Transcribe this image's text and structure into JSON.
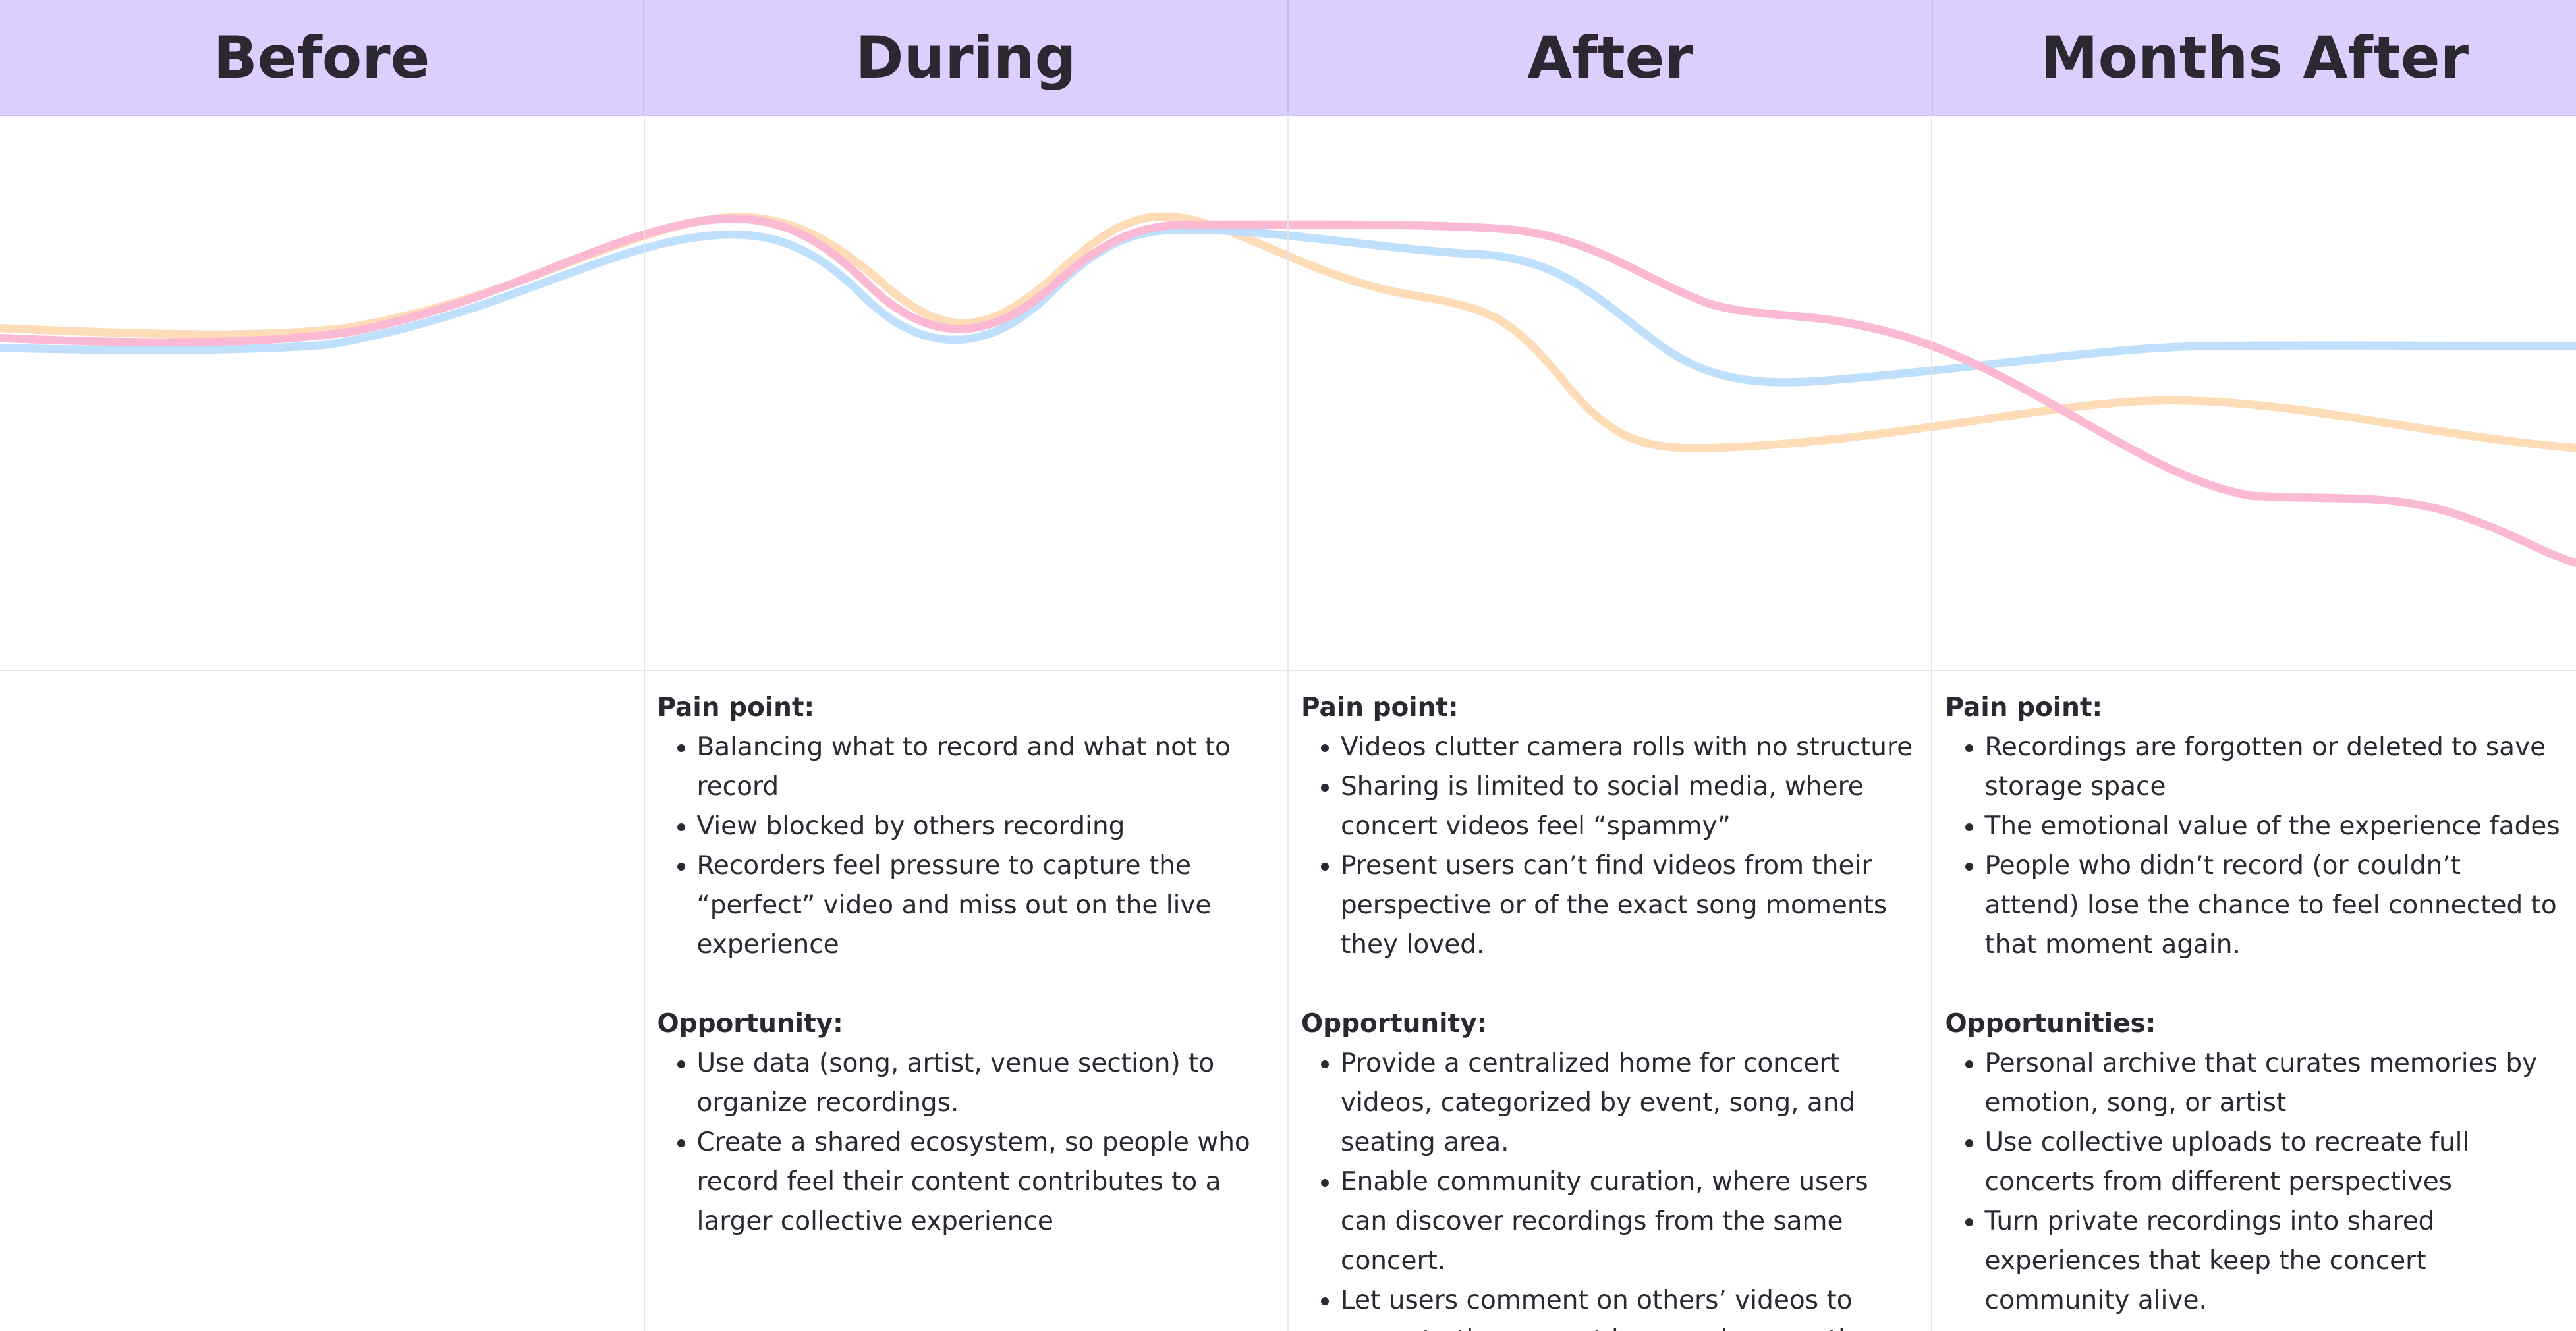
{
  "columns": [
    {
      "title": "Before"
    },
    {
      "title": "During",
      "sections": [
        {
          "heading": "Pain point:",
          "items": [
            "Balancing what to record and what not to record",
            "View blocked by others recording",
            "Recorders feel pressure to capture the “perfect” video and miss out on the live experience"
          ]
        },
        {
          "heading": "Opportunity:",
          "items": [
            "Use data (song, artist, venue section) to organize recordings.",
            "Create a shared ecosystem, so people who record feel their content contributes to a larger collective experience"
          ]
        }
      ]
    },
    {
      "title": "After",
      "sections": [
        {
          "heading": "Pain point:",
          "items": [
            "Videos clutter camera rolls with no structure",
            "Sharing is limited to social media, where concert videos feel “spammy”",
            "Present users can’t find videos from their perspective or of the exact song moments they loved."
          ]
        },
        {
          "heading": "Opportunity:",
          "items": [
            "Provide a centralized home for concert videos, categorized by event, song, and seating area.",
            "Enable community curation, where users can discover recordings from the same concert.",
            "Let users comment on others’ videos to recreate the concert buzz and connection."
          ]
        }
      ]
    },
    {
      "title": "Months After",
      "sections": [
        {
          "heading": "Pain point:",
          "items": [
            "Recordings are forgotten or deleted to save storage space",
            "The emotional value of the experience fades",
            "People who didn’t record (or couldn’t attend) lose the chance to feel connected to that moment again."
          ]
        },
        {
          "heading": "Opportunities:",
          "items": [
            "Personal archive that curates memories by emotion, song, or artist",
            "Use collective uploads to recreate full concerts from different perspectives",
            "Turn private recordings into shared experiences that keep the concert community alive."
          ]
        }
      ]
    }
  ]
}
